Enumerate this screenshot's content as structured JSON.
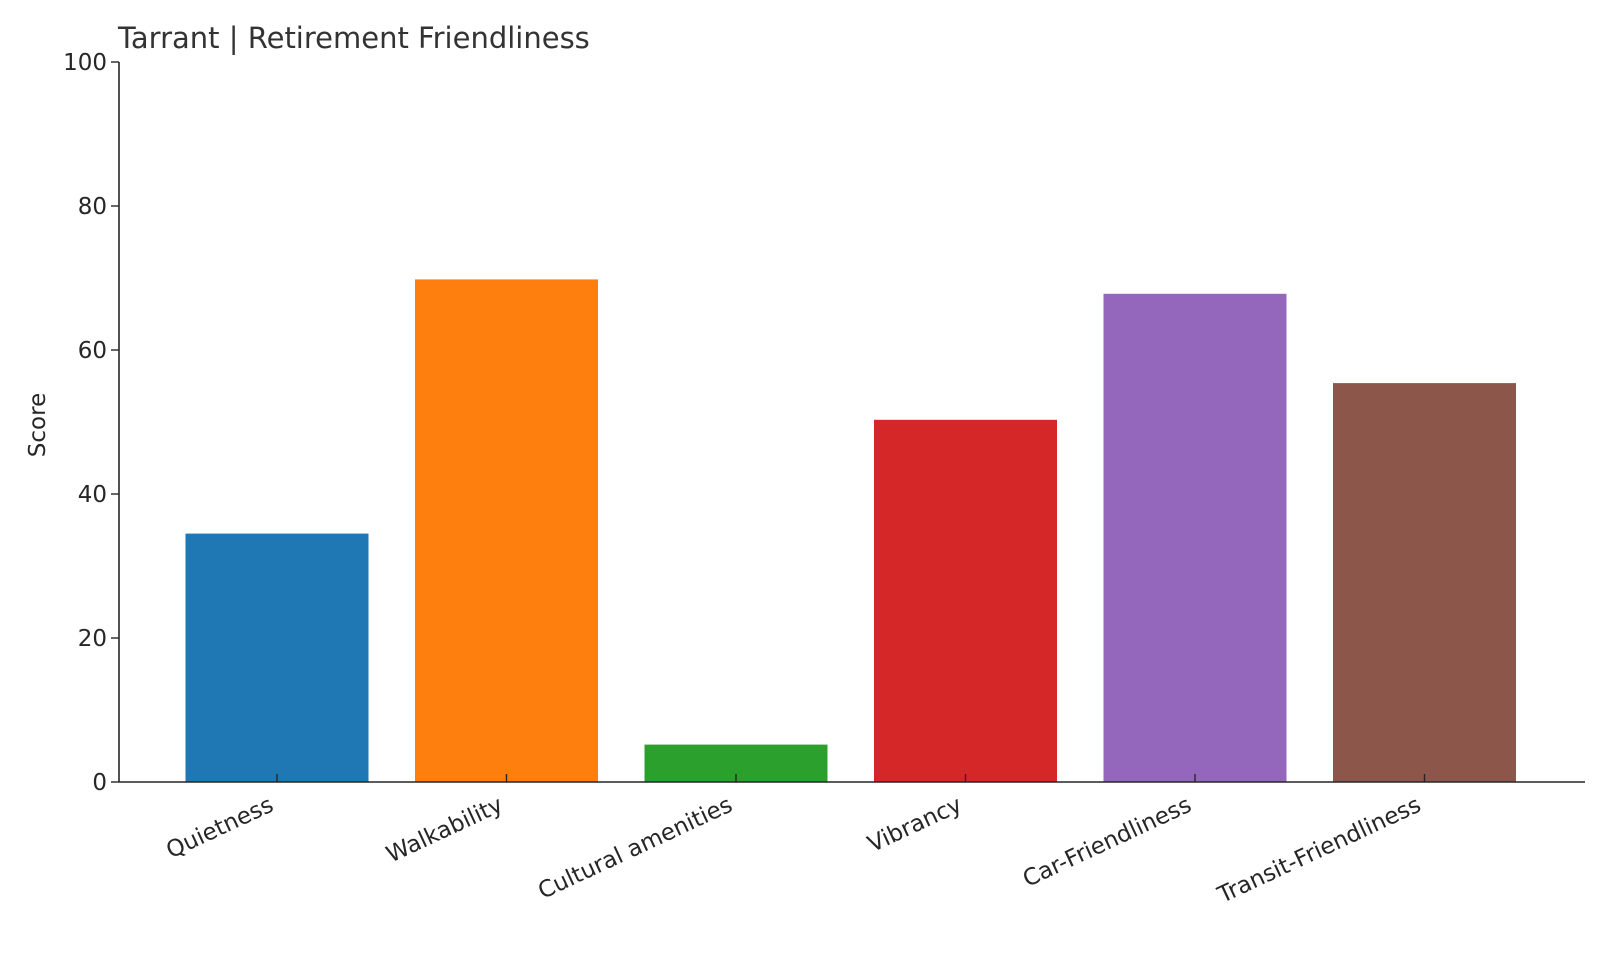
{
  "chart_data": {
    "type": "bar",
    "title": "Tarrant | Retirement Friendliness",
    "xlabel": "",
    "ylabel": "Score",
    "ylim": [
      0,
      100
    ],
    "yticks": [
      0,
      20,
      40,
      60,
      80,
      100
    ],
    "grid": false,
    "categories": [
      "Quietness",
      "Walkability",
      "Cultural amenities",
      "Vibrancy",
      "Car-Friendliness",
      "Transit-Friendliness"
    ],
    "values": [
      34.5,
      69.8,
      5.2,
      50.3,
      67.8,
      55.4
    ],
    "colors": [
      "#1f77b4",
      "#ff7f0e",
      "#2ca02c",
      "#d62728",
      "#9467bd",
      "#8c564b"
    ]
  }
}
